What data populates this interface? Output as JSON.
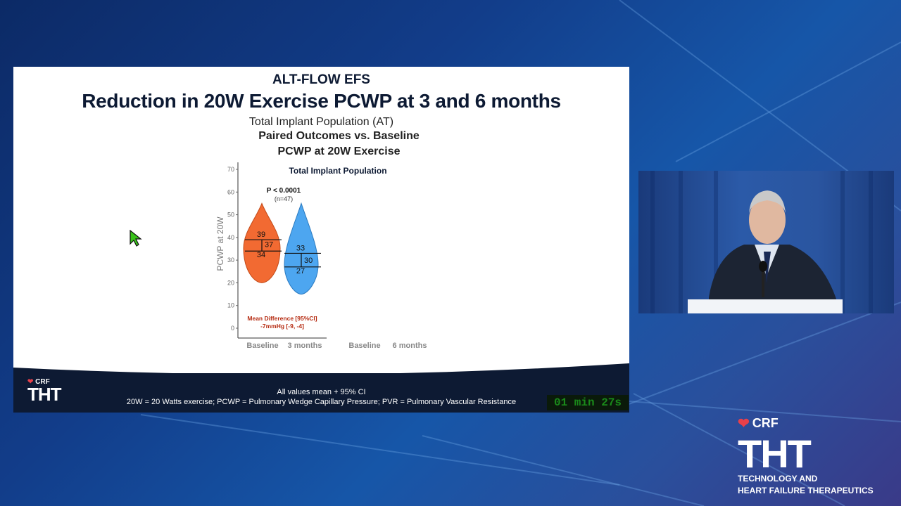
{
  "slide": {
    "title1": "ALT-FLOW EFS",
    "title2": "Reduction in 20W Exercise PCWP at 3 and 6 months",
    "subtitle1": "Total Implant Population (AT)",
    "subtitle2": "Paired Outcomes vs. Baseline",
    "subtitle3": "PCWP at 20W Exercise",
    "footer_line1": "All values mean + 95% CI",
    "footer_line2": "20W = 20 Watts exercise; PCWP = Pulmonary Wedge Capillary Pressure; PVR =  Pulmonary Vascular Resistance",
    "logo_crf": "CRF",
    "logo_tht": "THT"
  },
  "timer": "01 min 27s",
  "branding": {
    "crf": "CRF",
    "tht": "THT",
    "tagline1": "TECHNOLOGY AND",
    "tagline2": "HEART FAILURE THERAPEUTICS"
  },
  "colors": {
    "baseline_violin": "#f26a32",
    "three_month_violin": "#4da6f0",
    "annotation_red": "#b52a10",
    "footer_bg": "#0d1a33"
  },
  "chart_data": {
    "type": "violin",
    "title": "Total Implant Population",
    "ylabel": "PCWP at 20W",
    "ylim": [
      0,
      70
    ],
    "yticks": [
      0,
      10,
      20,
      30,
      40,
      50,
      60,
      70
    ],
    "categories": [
      "Baseline",
      "3 months",
      "Baseline",
      "6 months"
    ],
    "series": [
      {
        "category": "Baseline",
        "min": 20,
        "max": 55,
        "upper_ci": 39,
        "mean": 37,
        "lower_ci": 34
      },
      {
        "category": "3 months",
        "min": 15,
        "max": 55,
        "upper_ci": 33,
        "mean": 30,
        "lower_ci": 27
      }
    ],
    "p_value": "P < 0.0001",
    "n": "(n=47)",
    "annotation_line1": "Mean Difference [95%CI]",
    "annotation_line2": "-7mmHg [-9, -4]"
  }
}
